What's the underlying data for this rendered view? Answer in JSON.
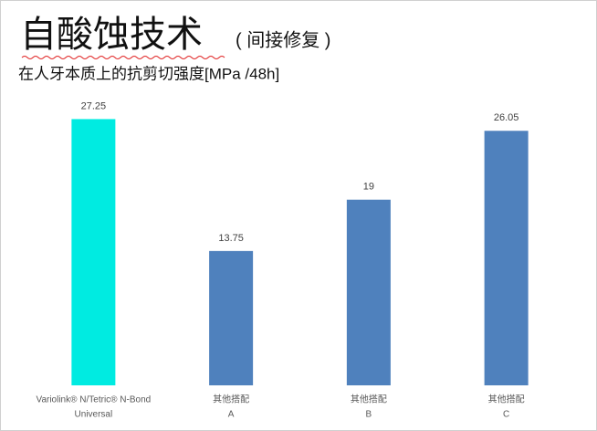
{
  "chart_data": {
    "type": "bar",
    "title": "自酸蚀技术",
    "title_note": "( 间接修复 )",
    "subtitle": "在人牙本质上的抗剪切强度[MPa /48h]",
    "categories": [
      [
        "Variolink® N/Tetric® N-Bond",
        "Universal"
      ],
      [
        "其他搭配",
        "A"
      ],
      [
        "其他搭配",
        "B"
      ],
      [
        "其他搭配",
        "C"
      ]
    ],
    "values": [
      27.25,
      13.75,
      19,
      26.05
    ],
    "colors": [
      "#00ebe1",
      "#4f81bd",
      "#4f81bd",
      "#4f81bd"
    ],
    "ylim": [
      0,
      30
    ]
  }
}
